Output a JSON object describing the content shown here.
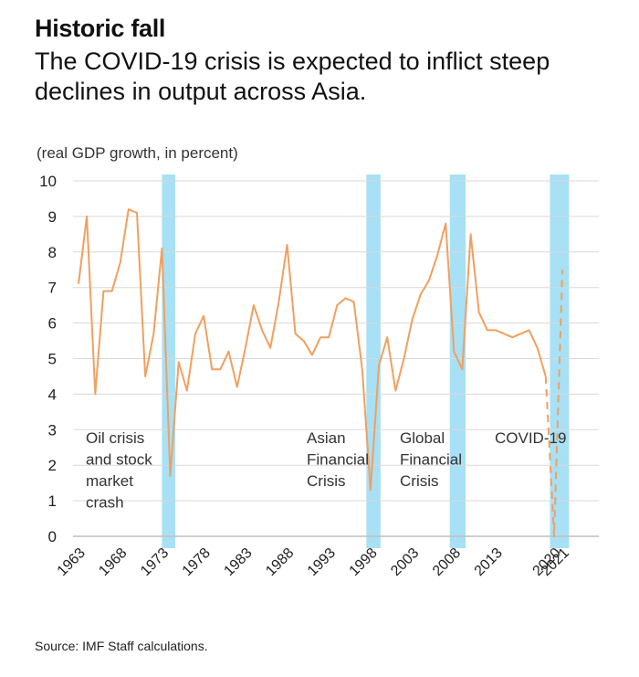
{
  "header": {
    "title": "Historic fall",
    "subtitle": "The COVID-19 crisis is expected to inflict steep declines in output across Asia."
  },
  "footer": {
    "source": "Source: IMF Staff calculations."
  },
  "colors": {
    "line": "#f0a060",
    "band": "#a8e0f5",
    "grid": "#d9d9d9",
    "axis": "#bfbfbf"
  },
  "chart_data": {
    "type": "line",
    "title": "Historic fall",
    "ylabel": "(real GDP growth, in percent)",
    "xlabel": "",
    "ylim": [
      0,
      10
    ],
    "yticks": [
      0,
      1,
      2,
      3,
      4,
      5,
      6,
      7,
      8,
      9,
      10
    ],
    "xticks": [
      "1963",
      "1968",
      "1973",
      "1978",
      "1983",
      "1988",
      "1993",
      "1998",
      "2003",
      "2008",
      "2013",
      "2020",
      "2021"
    ],
    "grid": "horizontal",
    "series": [
      {
        "style": "solid",
        "x": [
          1963,
          1964,
          1965,
          1966,
          1967,
          1968,
          1969,
          1970,
          1971,
          1972,
          1973,
          1974,
          1975,
          1976,
          1977,
          1978,
          1979,
          1980,
          1981,
          1982,
          1983,
          1984,
          1985,
          1986,
          1987,
          1988,
          1989,
          1990,
          1991,
          1992,
          1993,
          1994,
          1995,
          1996,
          1997,
          1998,
          1999,
          2000,
          2001,
          2002,
          2003,
          2004,
          2005,
          2006,
          2007,
          2008,
          2009,
          2010,
          2011,
          2012,
          2013,
          2014,
          2015,
          2016,
          2017,
          2018,
          2019
        ],
        "y": [
          7.1,
          9.0,
          4.0,
          6.9,
          6.9,
          7.7,
          9.2,
          9.1,
          4.5,
          5.7,
          8.1,
          1.7,
          4.9,
          4.1,
          5.7,
          6.2,
          4.7,
          4.7,
          5.2,
          4.2,
          5.3,
          6.5,
          5.8,
          5.3,
          6.6,
          8.2,
          5.7,
          5.5,
          5.1,
          5.6,
          5.6,
          6.5,
          6.7,
          6.6,
          4.7,
          1.3,
          4.8,
          5.6,
          4.1,
          5.0,
          6.1,
          6.8,
          7.2,
          7.9,
          8.8,
          5.2,
          4.7,
          8.5,
          6.3,
          5.8,
          5.8,
          5.7,
          5.6,
          5.7,
          5.8,
          5.3,
          4.5
        ]
      },
      {
        "style": "dashed",
        "x": [
          2019,
          2020,
          2021
        ],
        "y": [
          4.5,
          0.0,
          7.5
        ]
      }
    ],
    "shaded_periods": [
      {
        "start": 1973.0,
        "end": 1974.6
      },
      {
        "start": 1997.5,
        "end": 1999.2
      },
      {
        "start": 2007.5,
        "end": 2009.4
      },
      {
        "start": 2019.5,
        "end": 2021.8
      }
    ],
    "annotations": [
      {
        "lines": [
          "Oil crisis",
          "and stock",
          "market",
          "crash"
        ]
      },
      {
        "lines": [
          "Asian",
          "Financial",
          "Crisis"
        ]
      },
      {
        "lines": [
          "Global",
          "Financial",
          "Crisis"
        ]
      },
      {
        "lines": [
          "COVID-19"
        ]
      }
    ]
  }
}
